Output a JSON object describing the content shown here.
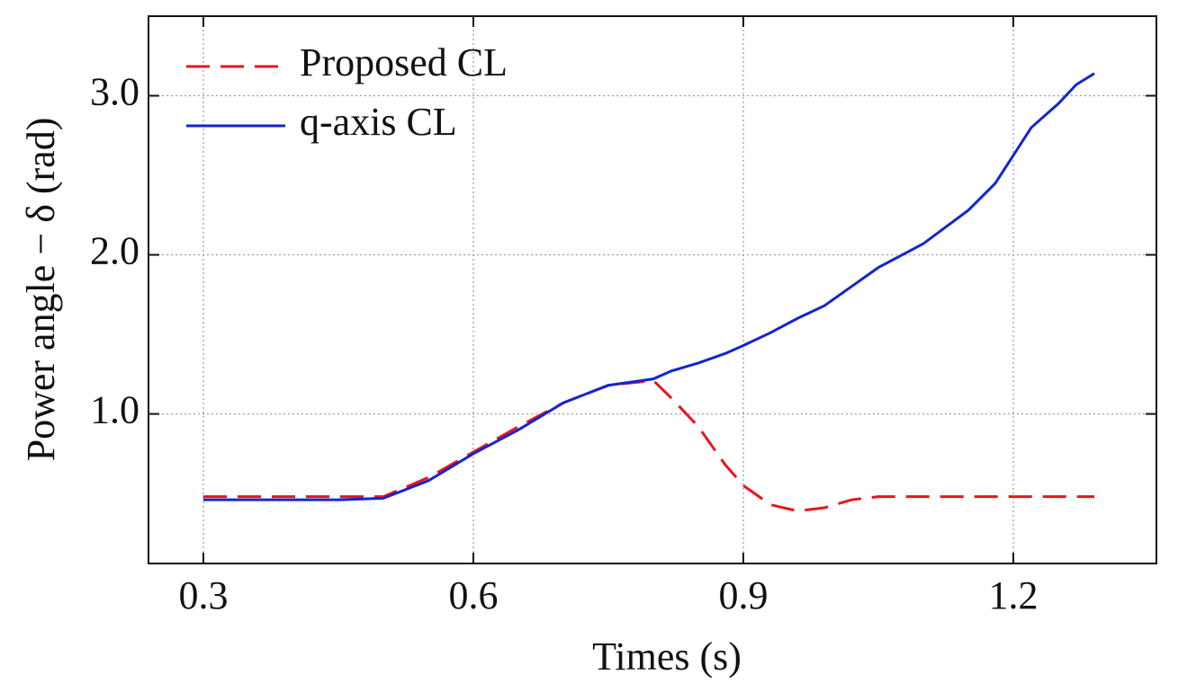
{
  "chart_data": {
    "type": "line",
    "xlabel": "Times (s)",
    "ylabel": "Power angle −  δ (rad)",
    "x": [
      0.3,
      0.35,
      0.4,
      0.45,
      0.5,
      0.55,
      0.6,
      0.65,
      0.7,
      0.75,
      0.8,
      0.82,
      0.85,
      0.88,
      0.9,
      0.93,
      0.96,
      0.99,
      1.02,
      1.05,
      1.1,
      1.15,
      1.18,
      1.22,
      1.25,
      1.27,
      1.29
    ],
    "series": [
      {
        "name": "Proposed CL",
        "color": "#e8141c",
        "dashed": true,
        "values": [
          0.48,
          0.48,
          0.48,
          0.48,
          0.48,
          0.6,
          0.76,
          0.92,
          1.07,
          1.18,
          1.21,
          1.1,
          0.92,
          0.68,
          0.55,
          0.43,
          0.39,
          0.41,
          0.46,
          0.48,
          0.48,
          0.48,
          0.48,
          0.48,
          0.48,
          0.48,
          0.48
        ]
      },
      {
        "name": "q-axis CL",
        "color": "#1424d0",
        "dashed": false,
        "values": [
          0.46,
          0.46,
          0.46,
          0.46,
          0.47,
          0.58,
          0.75,
          0.9,
          1.07,
          1.18,
          1.22,
          1.27,
          1.32,
          1.38,
          1.43,
          1.51,
          1.6,
          1.68,
          1.8,
          1.92,
          2.07,
          2.28,
          2.45,
          2.8,
          2.95,
          3.07,
          3.14
        ]
      }
    ],
    "xlim": [
      0.239,
      1.359
    ],
    "ylim": [
      0.06,
      3.5
    ],
    "xticks": [
      0.3,
      0.6,
      0.9,
      1.2
    ],
    "yticks": [
      {
        "value": 1,
        "label": "1.0"
      },
      {
        "value": 2,
        "label": "2.0"
      },
      {
        "value": 3,
        "label": "3.0"
      }
    ],
    "grid": true,
    "legend": "upper left"
  }
}
